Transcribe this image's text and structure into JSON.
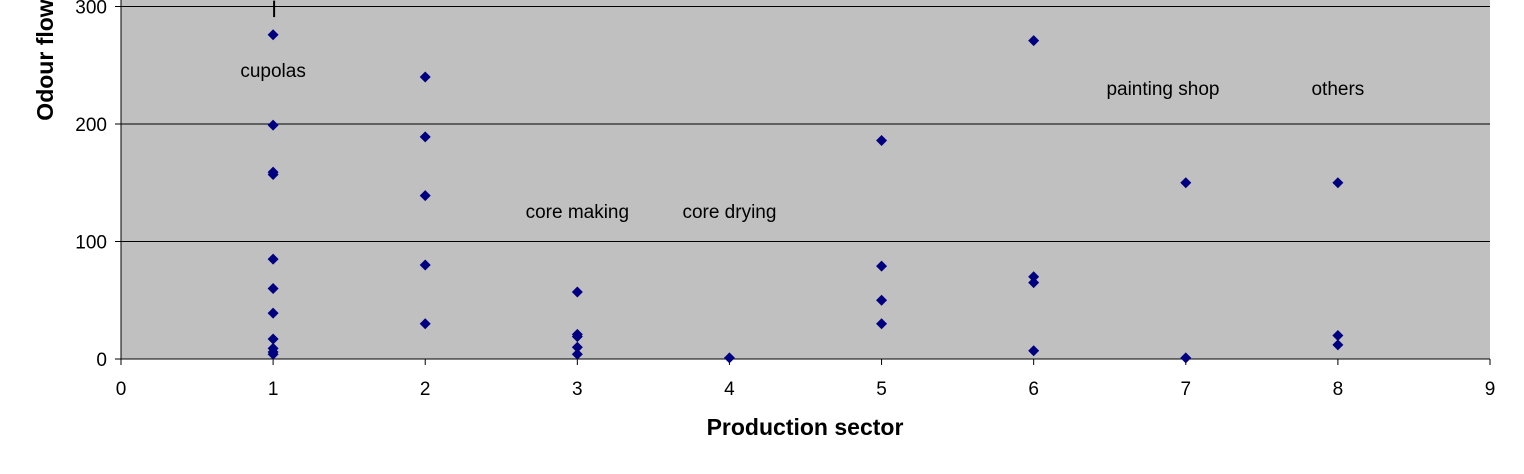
{
  "chart_data": {
    "type": "scatter",
    "xlabel": "Production sector",
    "ylabel": "Odour flow",
    "xlim": [
      0,
      9
    ],
    "ylim": [
      0,
      300
    ],
    "x_ticks": [
      0,
      1,
      2,
      3,
      4,
      5,
      6,
      7,
      8,
      9
    ],
    "y_ticks": [
      0,
      100,
      200,
      300
    ],
    "grid": "horizontal",
    "plot_background": "#c0c0c0",
    "marker_color": "#000080",
    "marker": "diamond",
    "series": [
      {
        "points": [
          [
            1,
            276
          ],
          [
            1,
            199
          ],
          [
            1,
            159
          ],
          [
            1,
            157
          ],
          [
            1,
            85
          ],
          [
            1,
            60
          ],
          [
            1,
            39
          ],
          [
            1,
            17
          ],
          [
            1,
            9
          ],
          [
            1,
            6
          ],
          [
            1,
            4
          ],
          [
            2,
            240
          ],
          [
            2,
            189
          ],
          [
            2,
            139
          ],
          [
            2,
            80
          ],
          [
            2,
            30
          ],
          [
            3,
            57
          ],
          [
            3,
            21
          ],
          [
            3,
            19
          ],
          [
            3,
            10
          ],
          [
            3,
            4
          ],
          [
            4,
            1
          ],
          [
            5,
            186
          ],
          [
            5,
            79
          ],
          [
            5,
            50
          ],
          [
            5,
            30
          ],
          [
            6,
            271
          ],
          [
            6,
            70
          ],
          [
            6,
            65
          ],
          [
            6,
            7
          ],
          [
            7,
            150
          ],
          [
            7,
            1
          ],
          [
            8,
            150
          ],
          [
            8,
            20
          ],
          [
            8,
            12
          ]
        ]
      }
    ],
    "annotations": [
      {
        "text": "cupolas",
        "x": 1,
        "y": 245
      },
      {
        "text": "core making",
        "x": 3,
        "y": 125
      },
      {
        "text": "core drying",
        "x": 4,
        "y": 125
      },
      {
        "text": "painting shop",
        "x": 6.85,
        "y": 230
      },
      {
        "text": "others",
        "x": 8,
        "y": 230
      }
    ],
    "marker_line": {
      "x": 1,
      "y_from": 291,
      "y_to": 305
    }
  }
}
